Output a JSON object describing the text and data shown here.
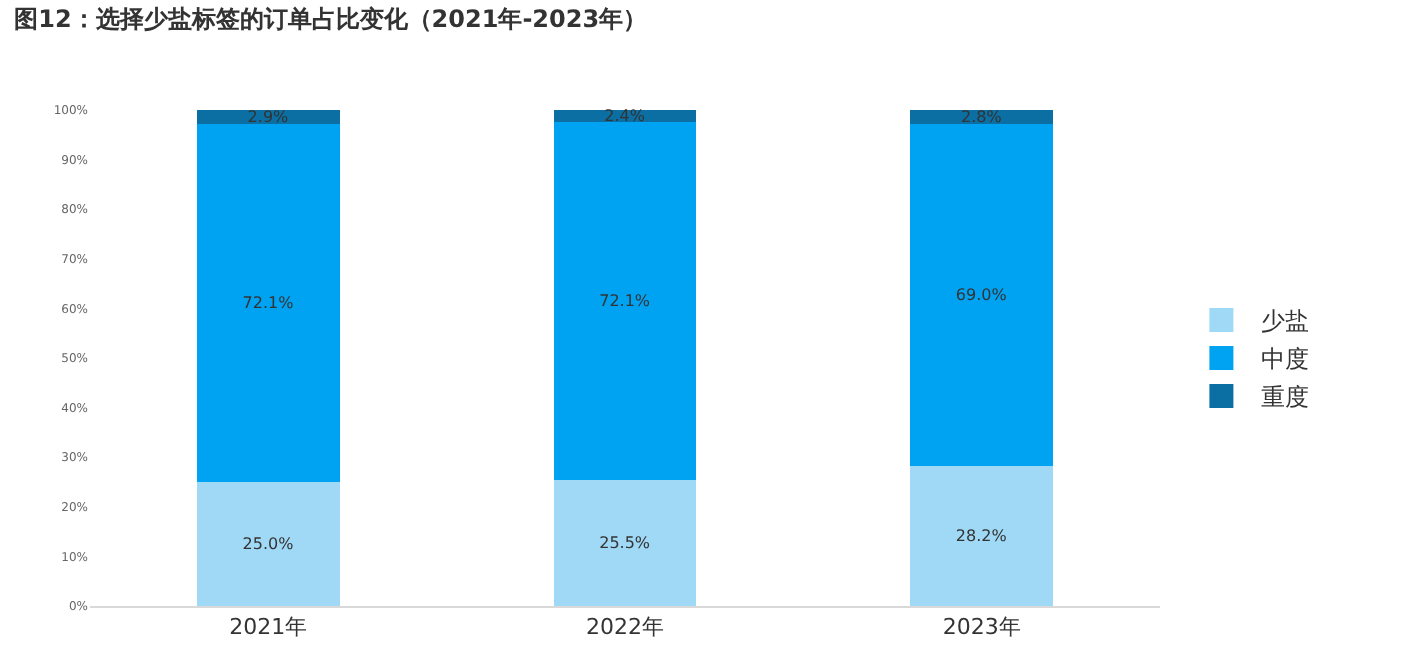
{
  "chart_data": {
    "type": "bar",
    "title": "图12：选择少盐标签的订单占比变化（2021年-2023年）",
    "categories": [
      "2021年",
      "2022年",
      "2023年"
    ],
    "stacked": true,
    "series": [
      {
        "name": "少盐",
        "color": "#9fd9f6",
        "values": [
          25.0,
          25.5,
          28.2
        ],
        "value_labels": [
          "25.0%",
          "25.5%",
          "28.2%"
        ]
      },
      {
        "name": "中度",
        "color": "#00a2f2",
        "values": [
          72.1,
          72.1,
          69.0
        ],
        "value_labels": [
          "72.1%",
          "72.1%",
          "69.0%"
        ]
      },
      {
        "name": "重度",
        "color": "#0b6fa3",
        "values": [
          2.9,
          2.4,
          2.8
        ],
        "value_labels": [
          "2.9%",
          "2.4%",
          "2.8%"
        ]
      }
    ],
    "ylim": [
      0,
      100
    ],
    "yticks": [
      {
        "value": 0,
        "label": "0%"
      },
      {
        "value": 10,
        "label": "10%"
      },
      {
        "value": 20,
        "label": "20%"
      },
      {
        "value": 30,
        "label": "30%"
      },
      {
        "value": 40,
        "label": "40%"
      },
      {
        "value": 50,
        "label": "50%"
      },
      {
        "value": 60,
        "label": "60%"
      },
      {
        "value": 70,
        "label": "70%"
      },
      {
        "value": 80,
        "label": "80%"
      },
      {
        "value": 90,
        "label": "90%"
      },
      {
        "value": 100,
        "label": "100%"
      }
    ],
    "legend": "right"
  }
}
